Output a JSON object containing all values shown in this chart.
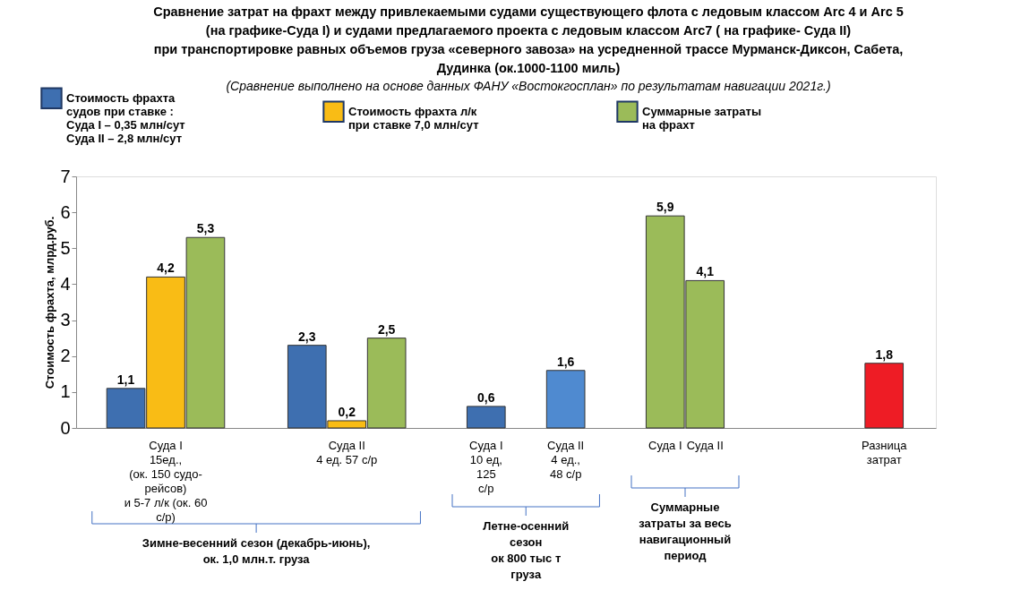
{
  "chart_data": {
    "type": "bar",
    "title": "Сравнение затрат на фрахт между привлекаемыми судами существующего флота с ледовым классом Arc 4 и Arc 5\n(на графике-Суда I) и судами предлагаемого проекта с ледовым классом Arc7 ( на графике- Суда II)\nпри транспортировке равных объемов груза «северного завоза» на усредненной трассе Мурманск-Диксон, Сабета,\nДудинка (ок.1000-1100 миль)",
    "subtitle": "(Сравнение выполнено на основе данных ФАНУ «Востокгосплан» по результатам навигации 2021г.)",
    "ylabel": "Стоимость фрахта, млрд.руб.",
    "categories": [
      "Суда I\n15ед.,\n(ок. 150 судо-\nрейсов)\nи 5-7 л/к (ок. 60\nс/р)",
      "Суда II\n4 ед. 57 с/р",
      "Суда I\n10 ед,\n125\nс/р",
      "Суда II\n4 ед.,\n48 с/р",
      "Суда I",
      "Суда II",
      "Разница\nзатрат"
    ],
    "series": [
      {
        "name": "Стоимость фрахта\nсудов при ставке :\nСуда I – 0,35 млн/сут\nСуда II – 2,8 млн/сут",
        "color": "#3e6fb0",
        "colors": [
          "#3e6fb0",
          "#3e6fb0",
          "#3e6fb0",
          "#4f8ad0",
          null,
          null,
          null
        ],
        "values": [
          1.1,
          2.3,
          0.6,
          1.6,
          null,
          null,
          null
        ],
        "value_labels": [
          "1,1",
          "2,3",
          "0,6",
          "1,6",
          null,
          null,
          null
        ]
      },
      {
        "name": "Стоимость фрахта л/к\nпри ставке 7,0 млн/сут",
        "color": "#f9bc15",
        "values": [
          4.2,
          0.2,
          null,
          null,
          null,
          null,
          null
        ],
        "value_labels": [
          "4,2",
          "0,2",
          null,
          null,
          null,
          null,
          null
        ]
      },
      {
        "name": "Суммарные затраты\nна фрахт",
        "color": "#9bbb59",
        "values": [
          5.3,
          2.5,
          null,
          null,
          5.9,
          4.1,
          null
        ],
        "value_labels": [
          "5,3",
          "2,5",
          null,
          null,
          "5,9",
          "4,1",
          null
        ]
      },
      {
        "color": "#ee1c25",
        "values": [
          null,
          null,
          null,
          null,
          null,
          null,
          1.8
        ],
        "value_labels": [
          null,
          null,
          null,
          null,
          null,
          null,
          "1,8"
        ]
      }
    ],
    "ylim": [
      0,
      7
    ],
    "yticks": [
      0,
      1,
      2,
      3,
      4,
      5,
      6,
      7
    ],
    "grid": false,
    "legend": "top",
    "annotations": [
      "Зимне-весенний сезон (декабрь-июнь),\nок. 1,0 млн.т. груза",
      "Летне-осенний\nсезон\nок 800 тыс т\nгруза",
      "Суммарные\nзатраты за весь\nнавигационный\nпериод"
    ]
  }
}
